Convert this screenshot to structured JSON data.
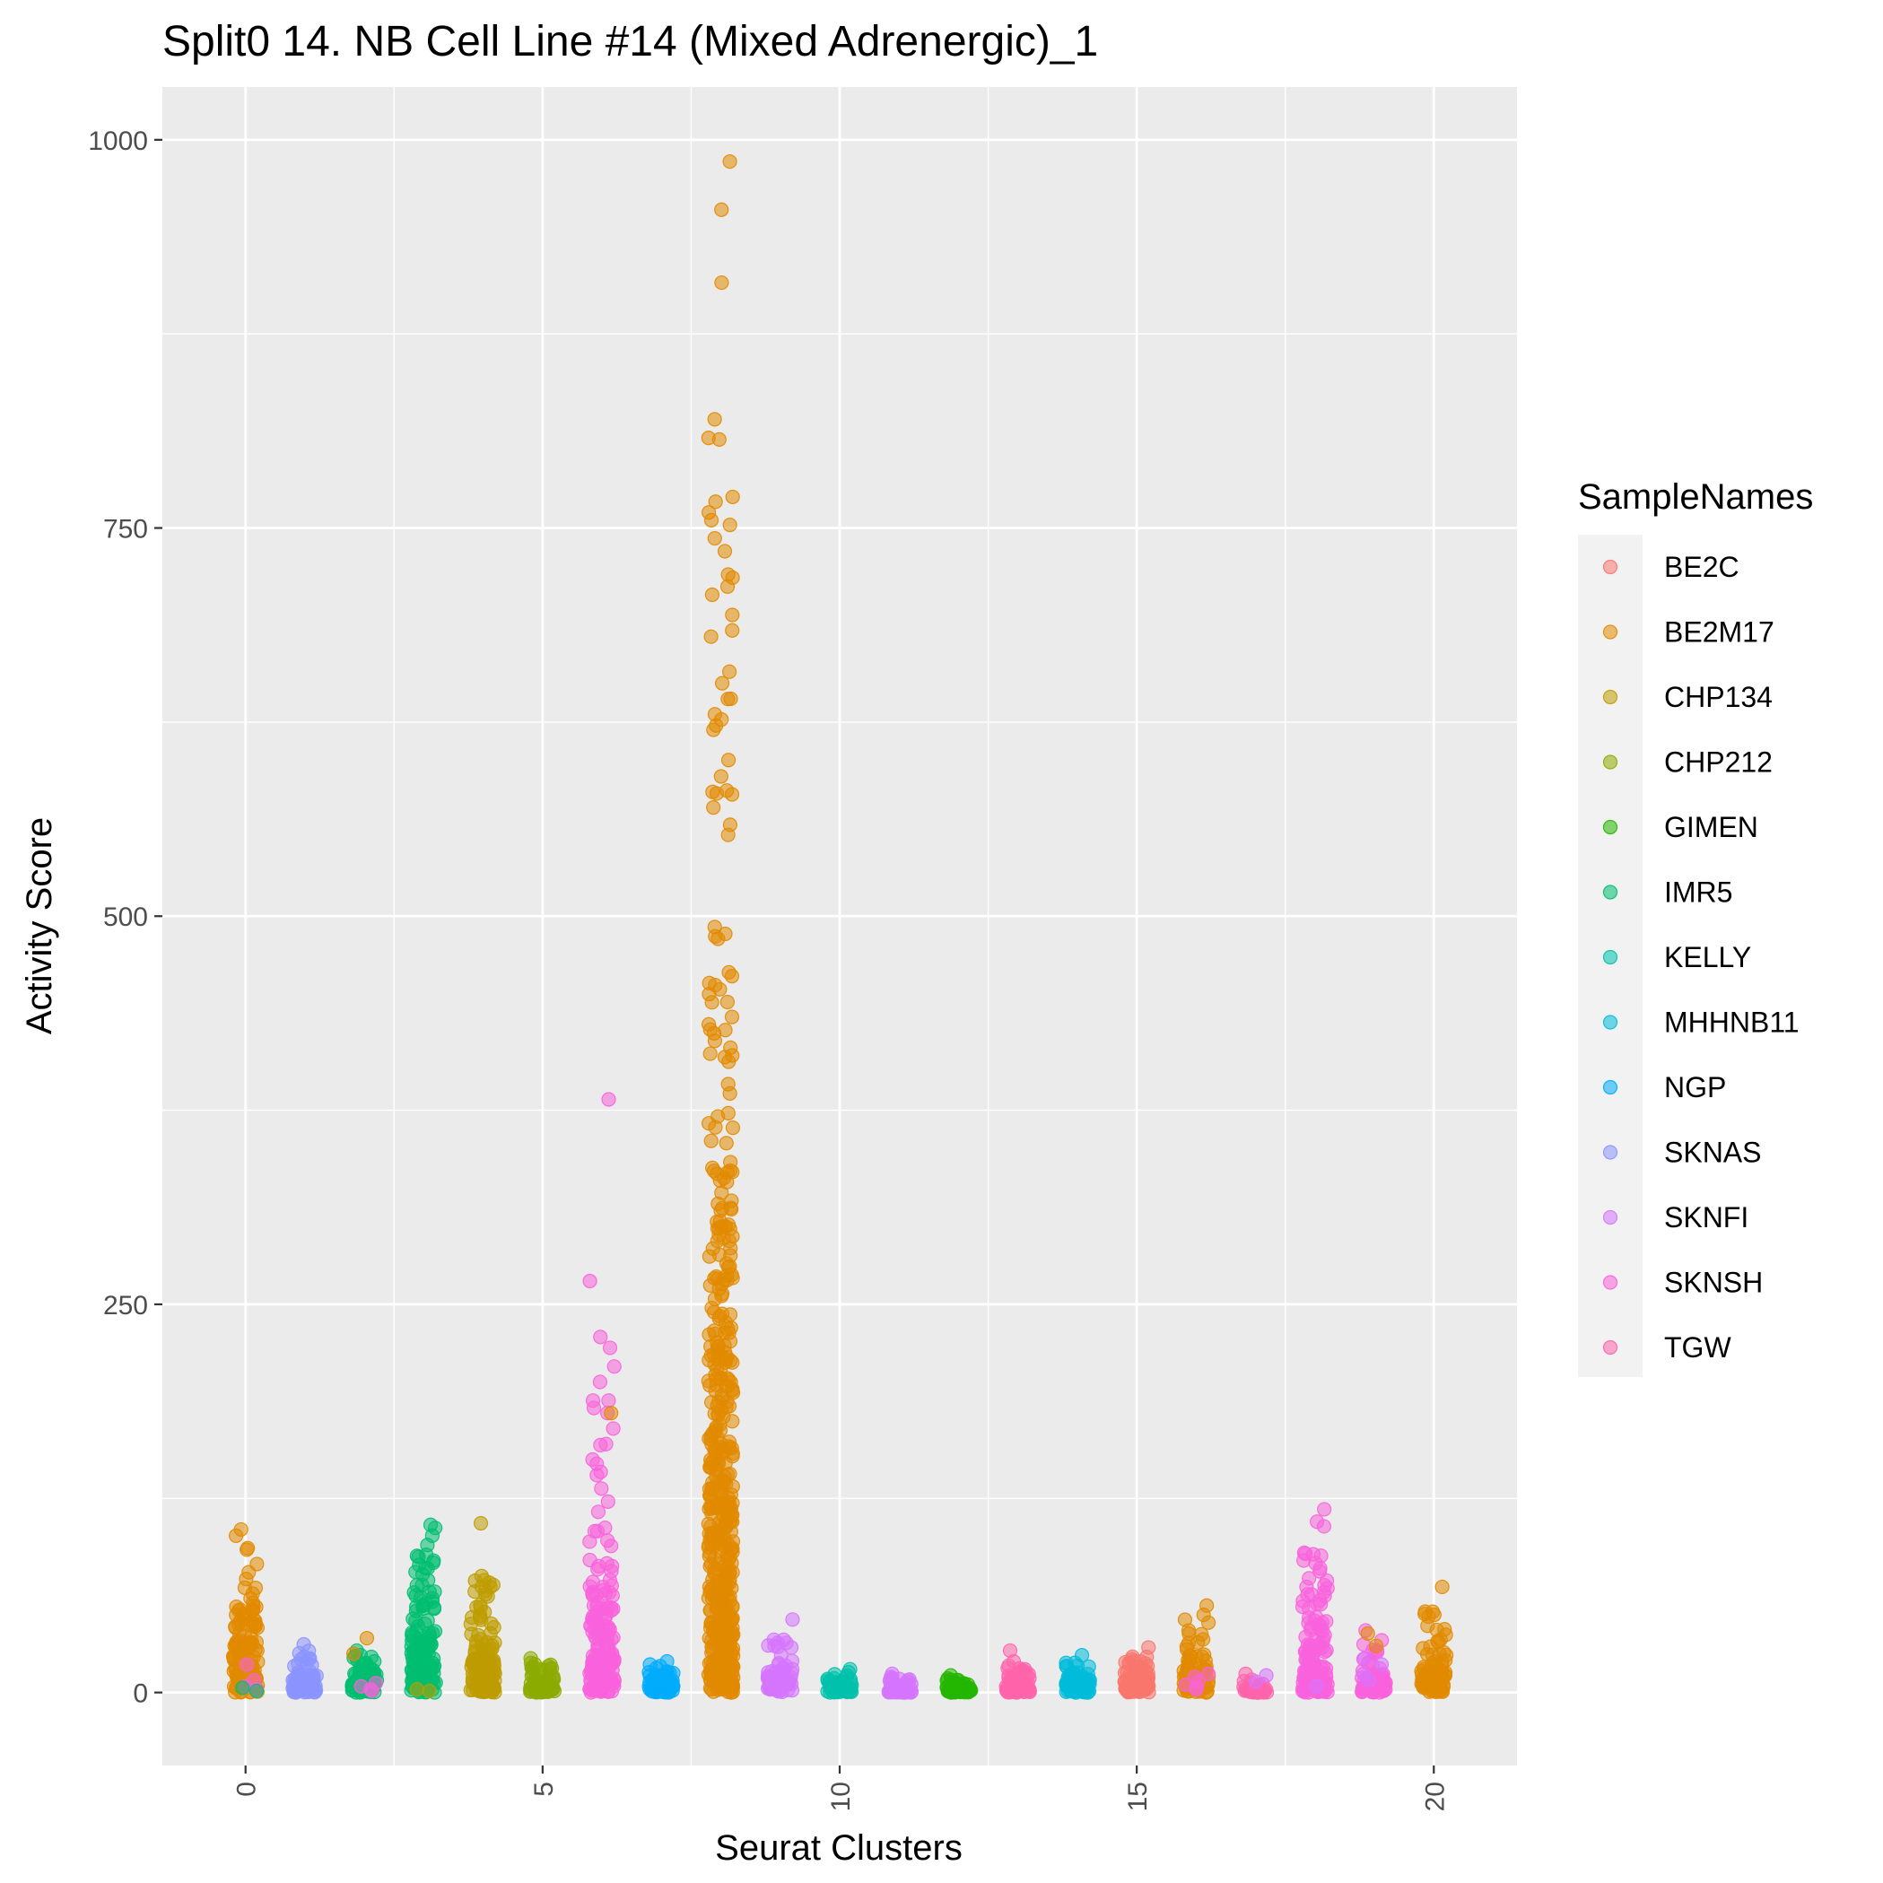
{
  "chart_data": {
    "type": "scatter",
    "title": "Split0 14. NB Cell Line #14 (Mixed Adrenergic)_1",
    "xlabel": "Seurat Clusters",
    "ylabel": "Activity Score",
    "xlim": [
      -1.4,
      21.4
    ],
    "ylim": [
      -47,
      1034
    ],
    "x_ticks": [
      0,
      5,
      10,
      15,
      20
    ],
    "y_ticks": [
      0,
      250,
      500,
      750,
      1000
    ],
    "grid": true,
    "legend_position": "right",
    "legend_title": "SampleNames",
    "series": [
      {
        "name": "BE2C",
        "color": "#F8766D"
      },
      {
        "name": "BE2M17",
        "color": "#E18A00"
      },
      {
        "name": "CHP134",
        "color": "#BE9C00"
      },
      {
        "name": "CHP212",
        "color": "#8CAB00"
      },
      {
        "name": "GIMEN",
        "color": "#24B700"
      },
      {
        "name": "IMR5",
        "color": "#00BE70"
      },
      {
        "name": "KELLY",
        "color": "#00C1AB"
      },
      {
        "name": "MHHNB11",
        "color": "#00BBDA"
      },
      {
        "name": "NGP",
        "color": "#00ACFC"
      },
      {
        "name": "SKNAS",
        "color": "#8B93FF"
      },
      {
        "name": "SKNFI",
        "color": "#D575FE"
      },
      {
        "name": "SKNSH",
        "color": "#F962DD"
      },
      {
        "name": "TGW",
        "color": "#FF65AC"
      }
    ],
    "clusters": [
      {
        "x": 0,
        "sample": "BE2M17",
        "n": 140,
        "max": 105,
        "scale": 30,
        "outliers": [
          105,
          101,
          93,
          92
        ]
      },
      {
        "x": 1,
        "sample": "SKNAS",
        "n": 60,
        "max": 32,
        "scale": 8,
        "outliers": [
          31,
          23
        ]
      },
      {
        "x": 2,
        "sample": "IMR5",
        "n": 70,
        "max": 28,
        "scale": 10,
        "outliers": [
          27,
          24,
          20
        ]
      },
      {
        "x": 3,
        "sample": "IMR5",
        "n": 140,
        "max": 108,
        "scale": 28,
        "outliers": [
          108,
          106,
          101,
          95,
          88,
          80,
          76
        ]
      },
      {
        "x": 4,
        "sample": "CHP134",
        "n": 130,
        "max": 109,
        "scale": 22,
        "outliers": [
          109,
          75,
          72,
          68,
          65
        ]
      },
      {
        "x": 5,
        "sample": "CHP212",
        "n": 60,
        "max": 22,
        "scale": 7,
        "outliers": [
          22,
          19,
          17
        ]
      },
      {
        "x": 6,
        "sample": "SKNSH",
        "n": 170,
        "max": 382,
        "scale": 40,
        "outliers": [
          382,
          265,
          222,
          210,
          200,
          188,
          180,
          170,
          160,
          150,
          140
        ]
      },
      {
        "x": 7,
        "sample": "NGP",
        "n": 60,
        "max": 20,
        "scale": 7,
        "outliers": [
          20,
          18,
          17
        ]
      },
      {
        "x": 8,
        "sample": "BE2M17",
        "n": 500,
        "max": 986,
        "scale": 170,
        "outliers": [
          986,
          955,
          908,
          820,
          808,
          807,
          770,
          760,
          755,
          752,
          735,
          720,
          718,
          707,
          694,
          680,
          650,
          640,
          630,
          620,
          590,
          580,
          570
        ]
      },
      {
        "x": 9,
        "sample": "SKNFI",
        "n": 70,
        "max": 47,
        "scale": 10,
        "outliers": [
          47,
          34,
          32,
          29
        ]
      },
      {
        "x": 10,
        "sample": "KELLY",
        "n": 60,
        "max": 15,
        "scale": 5,
        "outliers": [
          15,
          13
        ]
      },
      {
        "x": 11,
        "sample": "SKNFI",
        "n": 50,
        "max": 12,
        "scale": 4,
        "outliers": [
          12,
          8
        ]
      },
      {
        "x": 12,
        "sample": "GIMEN",
        "n": 60,
        "max": 11,
        "scale": 4,
        "outliers": [
          11,
          9
        ]
      },
      {
        "x": 13,
        "sample": "TGW",
        "n": 70,
        "max": 27,
        "scale": 6,
        "outliers": [
          27,
          20,
          15
        ]
      },
      {
        "x": 14,
        "sample": "MHHNB11",
        "n": 70,
        "max": 24,
        "scale": 7,
        "outliers": [
          24,
          19,
          17
        ]
      },
      {
        "x": 15,
        "sample": "BE2C",
        "n": 80,
        "max": 29,
        "scale": 9,
        "outliers": [
          29,
          23,
          20
        ]
      },
      {
        "x": 16,
        "sample": "BE2M17",
        "n": 90,
        "max": 56,
        "scale": 14,
        "outliers": [
          56,
          50,
          45,
          40
        ]
      },
      {
        "x": 17,
        "sample": "TGW",
        "n": 40,
        "max": 12,
        "scale": 2,
        "outliers": [
          12
        ]
      },
      {
        "x": 18,
        "sample": "SKNSH",
        "n": 120,
        "max": 118,
        "scale": 28,
        "outliers": [
          118,
          110,
          107,
          90,
          89,
          85,
          72,
          68
        ]
      },
      {
        "x": 19,
        "sample": "SKNSH",
        "n": 70,
        "max": 40,
        "scale": 10,
        "outliers": [
          40,
          31,
          27
        ]
      },
      {
        "x": 20,
        "sample": "BE2M17",
        "n": 90,
        "max": 68,
        "scale": 16,
        "outliers": [
          68,
          52,
          50,
          43
        ]
      }
    ],
    "extra_points": [
      {
        "x": 0,
        "sample": "SKNSH",
        "values": [
          18,
          8,
          4,
          2
        ]
      },
      {
        "x": 0,
        "sample": "IMR5",
        "values": [
          3,
          1
        ]
      },
      {
        "x": 2,
        "sample": "SKNSH",
        "values": [
          6,
          4,
          2,
          1
        ]
      },
      {
        "x": 2,
        "sample": "BE2M17",
        "values": [
          35,
          25
        ]
      },
      {
        "x": 3,
        "sample": "CHP134",
        "values": [
          2,
          1
        ]
      },
      {
        "x": 6,
        "sample": "BE2M17",
        "values": [
          180
        ]
      },
      {
        "x": 16,
        "sample": "SKNSH",
        "values": [
          12,
          10,
          7,
          5,
          3,
          2
        ]
      },
      {
        "x": 19,
        "sample": "BE2M17",
        "values": [
          38,
          30
        ]
      },
      {
        "x": 19,
        "sample": "SKNFI",
        "values": [
          22,
          18,
          12,
          8
        ]
      },
      {
        "x": 18,
        "sample": "SKNFI",
        "values": [
          4
        ]
      },
      {
        "x": 17,
        "sample": "SKNFI",
        "values": [
          11,
          7
        ]
      }
    ]
  }
}
